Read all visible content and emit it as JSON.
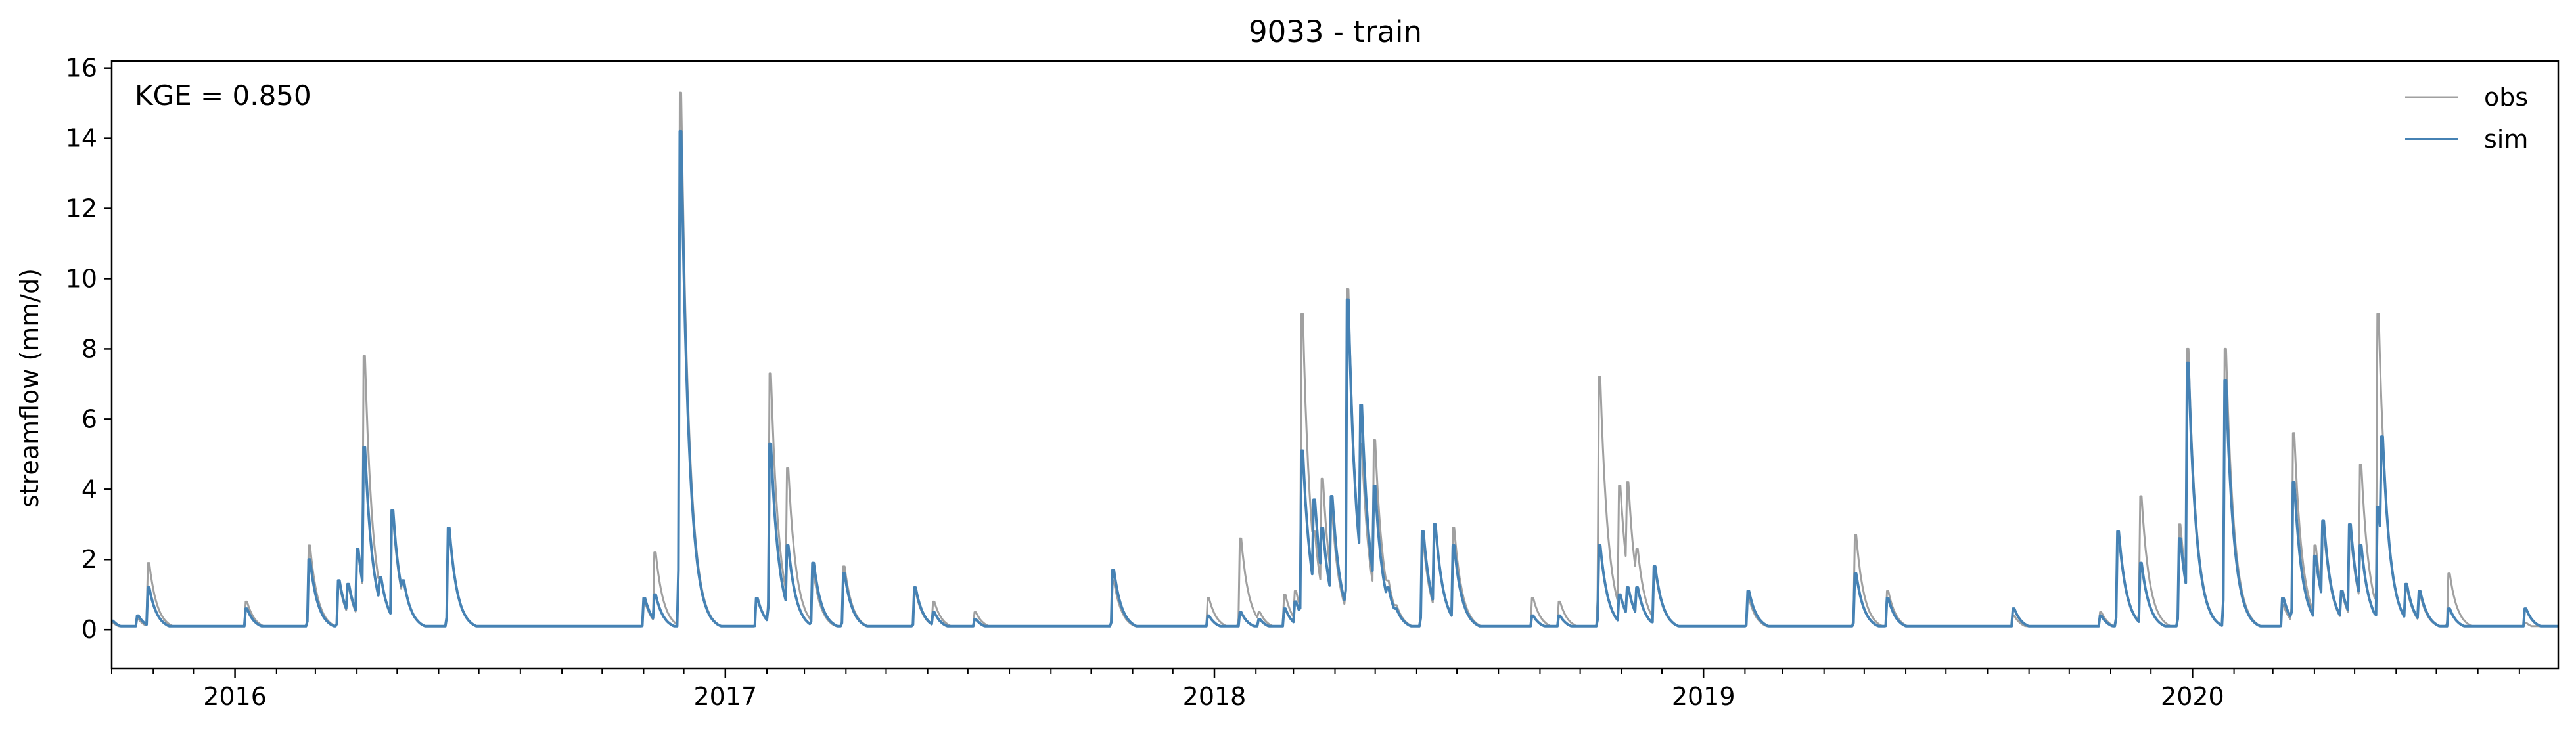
{
  "chart_data": {
    "type": "line",
    "title": "9033 - train",
    "xlabel": "",
    "ylabel": "streamflow (mm/d)",
    "annotation": "KGE = 0.850",
    "xlim": [
      "2015-10-01",
      "2020-09-30"
    ],
    "ylim": [
      -1.1,
      16.2
    ],
    "yticks": [
      0,
      2,
      4,
      6,
      8,
      10,
      12,
      14,
      16
    ],
    "xtick_labels": [
      "2016",
      "2017",
      "2018",
      "2019",
      "2020"
    ],
    "grid": false,
    "legend_position": "top-right",
    "baseflow": 0.1,
    "series": [
      {
        "name": "obs",
        "color": "#a0a0a0",
        "events": [
          [
            "2015-10-01",
            0.2
          ],
          [
            "2015-10-20",
            0.3
          ],
          [
            "2015-10-28",
            1.9
          ],
          [
            "2016-01-09",
            0.8
          ],
          [
            "2016-02-25",
            2.4
          ],
          [
            "2016-03-18",
            1.3
          ],
          [
            "2016-03-25",
            1.2
          ],
          [
            "2016-04-01",
            2.2
          ],
          [
            "2016-04-06",
            7.8
          ],
          [
            "2016-04-18",
            1.5
          ],
          [
            "2016-04-27",
            3.2
          ],
          [
            "2016-05-05",
            1.4
          ],
          [
            "2016-06-08",
            2.9
          ],
          [
            "2016-11-01",
            0.8
          ],
          [
            "2016-11-09",
            2.2
          ],
          [
            "2016-11-28",
            15.3
          ],
          [
            "2017-01-24",
            0.9
          ],
          [
            "2017-02-03",
            7.3
          ],
          [
            "2017-02-16",
            4.6
          ],
          [
            "2017-03-07",
            1.6
          ],
          [
            "2017-03-30",
            1.8
          ],
          [
            "2017-05-22",
            1.1
          ],
          [
            "2017-06-05",
            0.8
          ],
          [
            "2017-07-06",
            0.5
          ],
          [
            "2017-10-17",
            1.4
          ],
          [
            "2017-12-27",
            0.9
          ],
          [
            "2018-01-20",
            2.6
          ],
          [
            "2018-02-03",
            0.5
          ],
          [
            "2018-02-22",
            1.0
          ],
          [
            "2018-03-02",
            1.1
          ],
          [
            "2018-03-07",
            9.0
          ],
          [
            "2018-03-16",
            2.8
          ],
          [
            "2018-03-22",
            4.3
          ],
          [
            "2018-03-29",
            3.3
          ],
          [
            "2018-04-10",
            9.7
          ],
          [
            "2018-04-20",
            5.3
          ],
          [
            "2018-04-30",
            5.4
          ],
          [
            "2018-05-10",
            1.4
          ],
          [
            "2018-05-16",
            0.7
          ],
          [
            "2018-06-05",
            2.5
          ],
          [
            "2018-06-14",
            3.0
          ],
          [
            "2018-06-28",
            2.9
          ],
          [
            "2018-08-26",
            0.9
          ],
          [
            "2018-09-15",
            0.8
          ],
          [
            "2018-10-15",
            7.2
          ],
          [
            "2018-10-30",
            4.1
          ],
          [
            "2018-11-05",
            4.2
          ],
          [
            "2018-11-12",
            2.3
          ],
          [
            "2018-11-25",
            1.7
          ],
          [
            "2019-02-03",
            0.9
          ],
          [
            "2019-04-24",
            2.7
          ],
          [
            "2019-05-18",
            1.1
          ],
          [
            "2019-08-20",
            0.4
          ],
          [
            "2019-10-24",
            0.5
          ],
          [
            "2019-11-06",
            2.7
          ],
          [
            "2019-11-23",
            3.8
          ],
          [
            "2019-12-22",
            3.0
          ],
          [
            "2019-12-28",
            8.0
          ],
          [
            "2020-01-08",
            1.1
          ],
          [
            "2020-01-25",
            8.0
          ],
          [
            "2020-03-08",
            0.7
          ],
          [
            "2020-03-16",
            5.6
          ],
          [
            "2020-04-01",
            2.4
          ],
          [
            "2020-04-07",
            2.9
          ],
          [
            "2020-04-21",
            1.0
          ],
          [
            "2020-04-27",
            2.8
          ],
          [
            "2020-05-05",
            4.7
          ],
          [
            "2020-05-18",
            9.0
          ],
          [
            "2020-05-21",
            5.6
          ],
          [
            "2020-06-08",
            1.2
          ],
          [
            "2020-06-18",
            1.0
          ],
          [
            "2020-07-10",
            1.6
          ],
          [
            "2020-09-05",
            0.2
          ]
        ]
      },
      {
        "name": "sim",
        "color": "#4682b4",
        "events": [
          [
            "2015-10-01",
            0.25
          ],
          [
            "2015-10-20",
            0.4
          ],
          [
            "2015-10-28",
            1.2
          ],
          [
            "2016-01-09",
            0.6
          ],
          [
            "2016-02-25",
            2.0
          ],
          [
            "2016-03-18",
            1.4
          ],
          [
            "2016-03-25",
            1.3
          ],
          [
            "2016-04-01",
            2.3
          ],
          [
            "2016-04-06",
            5.2
          ],
          [
            "2016-04-18",
            1.5
          ],
          [
            "2016-04-27",
            3.4
          ],
          [
            "2016-05-05",
            1.4
          ],
          [
            "2016-06-08",
            2.9
          ],
          [
            "2016-11-01",
            0.9
          ],
          [
            "2016-11-09",
            1.0
          ],
          [
            "2016-11-28",
            14.2
          ],
          [
            "2017-01-24",
            0.9
          ],
          [
            "2017-02-03",
            5.3
          ],
          [
            "2017-02-16",
            2.4
          ],
          [
            "2017-03-07",
            1.9
          ],
          [
            "2017-03-30",
            1.6
          ],
          [
            "2017-05-22",
            1.2
          ],
          [
            "2017-06-05",
            0.5
          ],
          [
            "2017-07-06",
            0.3
          ],
          [
            "2017-10-17",
            1.7
          ],
          [
            "2017-12-27",
            0.4
          ],
          [
            "2018-01-20",
            0.5
          ],
          [
            "2018-02-03",
            0.3
          ],
          [
            "2018-02-22",
            0.6
          ],
          [
            "2018-03-02",
            0.8
          ],
          [
            "2018-03-07",
            5.1
          ],
          [
            "2018-03-16",
            3.7
          ],
          [
            "2018-03-22",
            2.9
          ],
          [
            "2018-03-29",
            3.8
          ],
          [
            "2018-04-10",
            9.4
          ],
          [
            "2018-04-20",
            6.4
          ],
          [
            "2018-04-30",
            4.1
          ],
          [
            "2018-05-10",
            1.2
          ],
          [
            "2018-05-16",
            0.6
          ],
          [
            "2018-06-05",
            2.8
          ],
          [
            "2018-06-14",
            3.0
          ],
          [
            "2018-06-28",
            2.4
          ],
          [
            "2018-08-26",
            0.4
          ],
          [
            "2018-09-15",
            0.4
          ],
          [
            "2018-10-15",
            2.4
          ],
          [
            "2018-10-30",
            1.0
          ],
          [
            "2018-11-05",
            1.2
          ],
          [
            "2018-11-12",
            1.2
          ],
          [
            "2018-11-25",
            1.8
          ],
          [
            "2019-02-03",
            1.1
          ],
          [
            "2019-04-24",
            1.6
          ],
          [
            "2019-05-18",
            0.9
          ],
          [
            "2019-08-20",
            0.6
          ],
          [
            "2019-10-24",
            0.4
          ],
          [
            "2019-11-06",
            2.8
          ],
          [
            "2019-11-23",
            1.9
          ],
          [
            "2019-12-22",
            2.6
          ],
          [
            "2019-12-28",
            7.6
          ],
          [
            "2020-01-08",
            1.1
          ],
          [
            "2020-01-25",
            7.1
          ],
          [
            "2020-03-08",
            0.9
          ],
          [
            "2020-03-16",
            4.2
          ],
          [
            "2020-04-01",
            2.1
          ],
          [
            "2020-04-07",
            3.1
          ],
          [
            "2020-04-21",
            1.1
          ],
          [
            "2020-04-27",
            3.0
          ],
          [
            "2020-05-05",
            2.4
          ],
          [
            "2020-05-18",
            3.5
          ],
          [
            "2020-05-21",
            5.5
          ],
          [
            "2020-06-08",
            1.3
          ],
          [
            "2020-06-18",
            1.1
          ],
          [
            "2020-07-10",
            0.6
          ],
          [
            "2020-09-05",
            0.6
          ]
        ]
      }
    ]
  }
}
